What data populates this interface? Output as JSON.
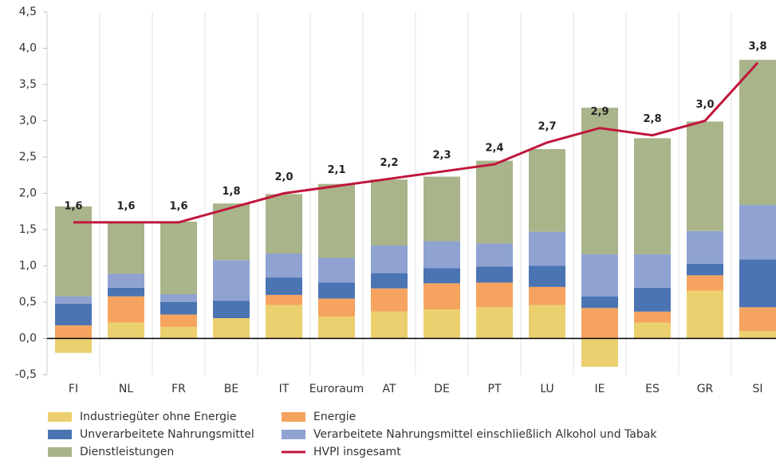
{
  "chart_data": {
    "type": "stacked_bar_line",
    "categories": [
      "FI",
      "NL",
      "FR",
      "BE",
      "IT",
      "Euroraum",
      "AT",
      "DE",
      "PT",
      "LU",
      "IE",
      "ES",
      "GR",
      "SI"
    ],
    "series": [
      {
        "name": "Industriegüter ohne Energie",
        "color": "#ecd06f",
        "values": [
          -0.2,
          0.22,
          0.16,
          0.28,
          0.46,
          0.3,
          0.37,
          0.4,
          0.43,
          0.46,
          -0.39,
          0.22,
          0.66,
          0.1
        ]
      },
      {
        "name": "Energie",
        "color": "#f5a35f",
        "values": [
          0.18,
          0.36,
          0.17,
          0,
          0.14,
          0.25,
          0.32,
          0.36,
          0.34,
          0.25,
          0.42,
          0.15,
          0.21,
          0.33
        ]
      },
      {
        "name": "Unverarbeitete Nahrungsmittel",
        "color": "#4b74b3",
        "values": [
          0.3,
          0.12,
          0.17,
          0.24,
          0.24,
          0.22,
          0.21,
          0.21,
          0.22,
          0.29,
          0.16,
          0.33,
          0.16,
          0.66
        ]
      },
      {
        "name": "Verarbeitete Nahrungsmittel einschließlich Alkohol und Tabak",
        "color": "#8fa2d2",
        "values": [
          0.1,
          0.19,
          0.11,
          0.56,
          0.33,
          0.34,
          0.38,
          0.37,
          0.32,
          0.47,
          0.58,
          0.46,
          0.45,
          0.75
        ]
      },
      {
        "name": "Dienstleistungen",
        "color": "#a9b48a",
        "values": [
          1.24,
          0.7,
          1.0,
          0.78,
          0.82,
          1.02,
          0.91,
          0.89,
          1.14,
          1.14,
          2.02,
          1.6,
          1.51,
          2.0
        ]
      }
    ],
    "line": {
      "name": "HVPI insgesamt",
      "color": "#c0163b",
      "values": [
        1.6,
        1.6,
        1.6,
        1.8,
        2.0,
        2.1,
        2.2,
        2.3,
        2.4,
        2.7,
        2.9,
        2.8,
        3.0,
        3.8
      ],
      "value_labels": [
        "1,6",
        "1,6",
        "1,6",
        "1,8",
        "2,0",
        "2,1",
        "2,2",
        "2,3",
        "2,4",
        "2,7",
        "2,9",
        "2,8",
        "3,0",
        "3,8"
      ]
    },
    "ylim": [
      -0.5,
      4.5
    ],
    "yticks": [
      {
        "value": -0.5,
        "label": "-0,5"
      },
      {
        "value": 0,
        "label": "0,0"
      },
      {
        "value": 0.5,
        "label": "0,5"
      },
      {
        "value": 1,
        "label": "1,0"
      },
      {
        "value": 1.5,
        "label": "1,5"
      },
      {
        "value": 2,
        "label": "2,0"
      },
      {
        "value": 2.5,
        "label": "2,5"
      },
      {
        "value": 3,
        "label": "3,0"
      },
      {
        "value": 3.5,
        "label": "3,5"
      },
      {
        "value": 4,
        "label": "4,0"
      },
      {
        "value": 4.5,
        "label": "4,5"
      }
    ]
  }
}
